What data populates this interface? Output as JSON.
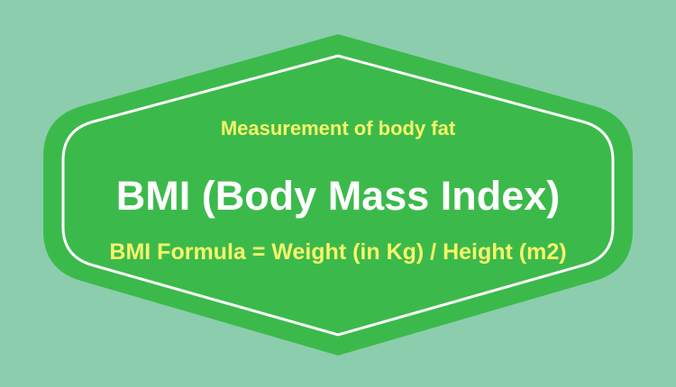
{
  "colors": {
    "background": "#8ccdad",
    "badge_fill": "#3bba4b",
    "badge_border": "#ffffff",
    "title_text": "#ffffff",
    "accent_text": "#f7f46a"
  },
  "badge": {
    "subtitle": "Measurement of body fat",
    "title": "BMI (Body Mass Index)",
    "formula": "BMI Formula = Weight (in Kg) / Height (m2)"
  }
}
